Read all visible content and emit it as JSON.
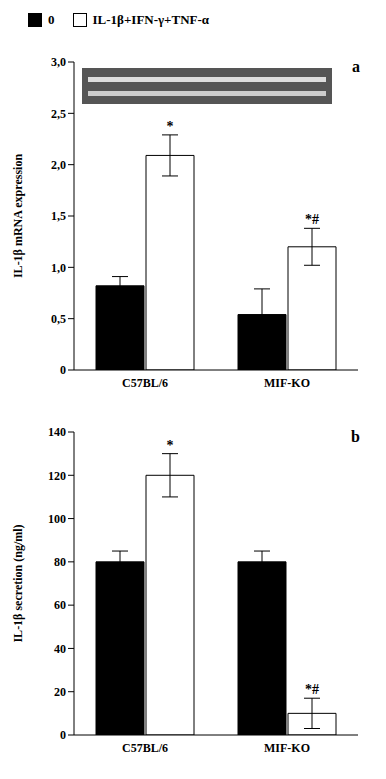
{
  "chart_data": [
    {
      "type": "bar",
      "panel_label": "a",
      "ylabel": "IL-1β mRNA expression",
      "categories": [
        "C57BL/6",
        "MIF-KO"
      ],
      "series": [
        {
          "name": "0",
          "color": "#000000",
          "values": [
            0.82,
            0.54
          ],
          "errors": [
            0.09,
            0.25
          ],
          "significance": [
            null,
            null
          ]
        },
        {
          "name": "IL-1β+IFN-γ+TNF-α",
          "color": "#ffffff",
          "values": [
            2.09,
            1.2
          ],
          "errors": [
            0.2,
            0.18
          ],
          "significance": [
            "*",
            "*#"
          ]
        }
      ],
      "ylim": [
        0,
        3
      ],
      "yticks": [
        0,
        {
          "value": 0.5,
          "label": "0,5"
        },
        {
          "value": 1,
          "label": "1,0"
        },
        {
          "value": 1.5,
          "label": "1,5"
        },
        {
          "value": 2,
          "label": "2,0"
        },
        {
          "value": 2.5,
          "label": "2,5"
        },
        {
          "value": 3,
          "label": "3,0"
        }
      ],
      "grid": false,
      "legend": "top"
    },
    {
      "type": "bar",
      "panel_label": "b",
      "ylabel": "IL-1β secretion (ng/ml)",
      "categories": [
        "C57BL/6",
        "MIF-KO"
      ],
      "series": [
        {
          "name": "0",
          "color": "#000000",
          "values": [
            80,
            80
          ],
          "errors": [
            5,
            5
          ],
          "significance": [
            null,
            null
          ]
        },
        {
          "name": "IL-1β+IFN-γ+TNF-α",
          "color": "#ffffff",
          "values": [
            120,
            10
          ],
          "errors": [
            10,
            7
          ],
          "significance": [
            "*",
            "*#"
          ]
        }
      ],
      "ylim": [
        0,
        140
      ],
      "yticks": [
        0,
        20,
        40,
        60,
        80,
        100,
        120,
        140
      ],
      "grid": false
    }
  ]
}
